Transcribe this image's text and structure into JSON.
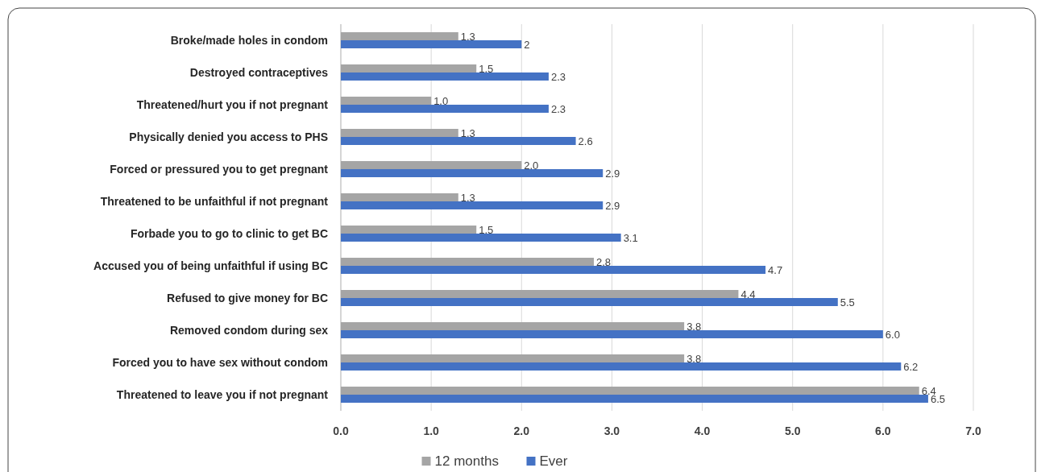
{
  "chart_data": {
    "type": "bar",
    "orientation": "horizontal",
    "categories": [
      "Broke/made holes in condom",
      "Destroyed contraceptives",
      "Threatened/hurt you if not pregnant",
      "Physically denied you access to PHS",
      "Forced or pressured you to get pregnant",
      "Threatened to be unfaithful if not pregnant",
      "Forbade you to go to  clinic to get BC",
      "Accused you of being unfaithful if using BC",
      "Refused to give money for BC",
      "Removed condom during sex",
      "Forced you to have sex without condom",
      "Threatened to leave you if not pregnant"
    ],
    "series": [
      {
        "name": "12 months",
        "color": "#a5a5a5",
        "values": [
          1.3,
          1.5,
          1.0,
          1.3,
          2.0,
          1.3,
          1.5,
          2.8,
          4.4,
          3.8,
          3.8,
          6.4
        ],
        "value_labels": [
          "1.3",
          "1.5",
          "1.0",
          "1.3",
          "2.0",
          "1.3",
          "1.5",
          "2.8",
          "4.4",
          "3.8",
          "3.8",
          "6.4"
        ]
      },
      {
        "name": "Ever",
        "color": "#4472c4",
        "values": [
          2,
          2.3,
          2.3,
          2.6,
          2.9,
          2.9,
          3.1,
          4.7,
          5.5,
          6.0,
          6.2,
          6.5
        ],
        "value_labels": [
          "2",
          "2.3",
          "2.3",
          "2.6",
          "2.9",
          "2.9",
          "3.1",
          "4.7",
          "5.5",
          "6.0",
          "6.2",
          "6.5"
        ]
      }
    ],
    "xlim": [
      0,
      7
    ],
    "xticks": [
      {
        "value": 0,
        "label": "0.0"
      },
      {
        "value": 1,
        "label": "1.0"
      },
      {
        "value": 2,
        "label": "2.0"
      },
      {
        "value": 3,
        "label": "3.0"
      },
      {
        "value": 4,
        "label": "4.0"
      },
      {
        "value": 5,
        "label": "5.0"
      },
      {
        "value": 6,
        "label": "6.0"
      },
      {
        "value": 7,
        "label": "7.0"
      }
    ],
    "grid": "x",
    "legend": "bottom"
  }
}
